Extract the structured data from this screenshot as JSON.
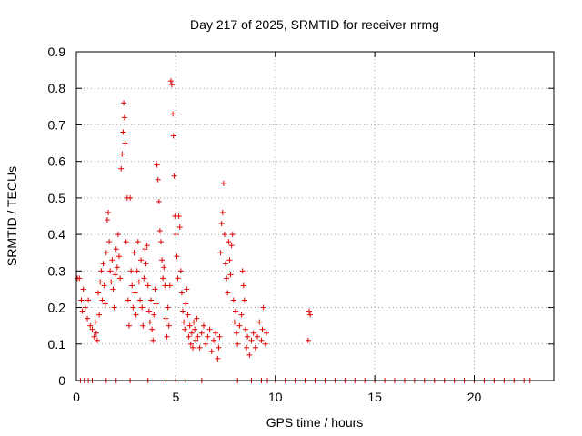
{
  "chart_data": {
    "type": "scatter",
    "title": "Day 217 of 2025, SRMTID for receiver nrmg",
    "xlabel": "GPS time / hours",
    "ylabel": "SRMTID / TECUs",
    "xlim": [
      0,
      24
    ],
    "ylim": [
      0,
      0.9
    ],
    "xticks": [
      "0",
      "5",
      "10",
      "15",
      "20"
    ],
    "yticks": [
      "0",
      "0.1",
      "0.2",
      "0.3",
      "0.4",
      "0.5",
      "0.6",
      "0.7",
      "0.8",
      "0.9"
    ],
    "grid": true,
    "marker": "plus",
    "color": "#e00000",
    "series": [
      {
        "name": "SRMTID",
        "points": [
          [
            0.05,
            0.28
          ],
          [
            0.15,
            0.28
          ],
          [
            0.25,
            0.22
          ],
          [
            0.3,
            0.19
          ],
          [
            0.35,
            0.25
          ],
          [
            0.45,
            0.2
          ],
          [
            0.55,
            0.17
          ],
          [
            0.6,
            0.22
          ],
          [
            0.7,
            0.15
          ],
          [
            0.8,
            0.14
          ],
          [
            0.9,
            0.12
          ],
          [
            0.95,
            0.16
          ],
          [
            1.0,
            0.13
          ],
          [
            1.05,
            0.11
          ],
          [
            1.1,
            0.24
          ],
          [
            1.15,
            0.18
          ],
          [
            1.2,
            0.27
          ],
          [
            1.25,
            0.3
          ],
          [
            1.3,
            0.22
          ],
          [
            1.35,
            0.32
          ],
          [
            1.4,
            0.26
          ],
          [
            1.45,
            0.21
          ],
          [
            1.5,
            0.35
          ],
          [
            1.55,
            0.44
          ],
          [
            1.6,
            0.46
          ],
          [
            1.65,
            0.38
          ],
          [
            1.7,
            0.3
          ],
          [
            1.75,
            0.27
          ],
          [
            1.8,
            0.33
          ],
          [
            1.85,
            0.25
          ],
          [
            1.9,
            0.2
          ],
          [
            1.95,
            0.29
          ],
          [
            2.0,
            0.36
          ],
          [
            2.05,
            0.31
          ],
          [
            2.1,
            0.4
          ],
          [
            2.15,
            0.34
          ],
          [
            2.2,
            0.28
          ],
          [
            2.25,
            0.58
          ],
          [
            2.3,
            0.62
          ],
          [
            2.35,
            0.68
          ],
          [
            2.38,
            0.76
          ],
          [
            2.42,
            0.72
          ],
          [
            2.45,
            0.65
          ],
          [
            2.5,
            0.38
          ],
          [
            2.55,
            0.5
          ],
          [
            2.6,
            0.22
          ],
          [
            2.65,
            0.15
          ],
          [
            2.7,
            0.5
          ],
          [
            2.75,
            0.3
          ],
          [
            2.8,
            0.26
          ],
          [
            2.85,
            0.2
          ],
          [
            2.9,
            0.35
          ],
          [
            2.95,
            0.24
          ],
          [
            3.0,
            0.18
          ],
          [
            3.05,
            0.3
          ],
          [
            3.1,
            0.38
          ],
          [
            3.15,
            0.27
          ],
          [
            3.2,
            0.22
          ],
          [
            3.25,
            0.33
          ],
          [
            3.3,
            0.2
          ],
          [
            3.35,
            0.15
          ],
          [
            3.4,
            0.28
          ],
          [
            3.45,
            0.36
          ],
          [
            3.5,
            0.32
          ],
          [
            3.55,
            0.37
          ],
          [
            3.6,
            0.26
          ],
          [
            3.65,
            0.19
          ],
          [
            3.7,
            0.16
          ],
          [
            3.75,
            0.22
          ],
          [
            3.8,
            0.14
          ],
          [
            3.85,
            0.11
          ],
          [
            3.9,
            0.18
          ],
          [
            3.95,
            0.25
          ],
          [
            4.0,
            0.21
          ],
          [
            4.05,
            0.59
          ],
          [
            4.1,
            0.55
          ],
          [
            4.15,
            0.49
          ],
          [
            4.2,
            0.41
          ],
          [
            4.25,
            0.38
          ],
          [
            4.3,
            0.33
          ],
          [
            4.35,
            0.28
          ],
          [
            4.4,
            0.31
          ],
          [
            4.45,
            0.26
          ],
          [
            4.5,
            0.17
          ],
          [
            4.55,
            0.12
          ],
          [
            4.6,
            0.2
          ],
          [
            4.65,
            0.15
          ],
          [
            4.7,
            0.26
          ],
          [
            4.75,
            0.82
          ],
          [
            4.8,
            0.81
          ],
          [
            4.85,
            0.73
          ],
          [
            4.88,
            0.67
          ],
          [
            4.92,
            0.56
          ],
          [
            4.95,
            0.45
          ],
          [
            5.0,
            0.4
          ],
          [
            5.05,
            0.34
          ],
          [
            5.1,
            0.28
          ],
          [
            5.15,
            0.45
          ],
          [
            5.2,
            0.42
          ],
          [
            5.25,
            0.3
          ],
          [
            5.3,
            0.24
          ],
          [
            5.35,
            0.19
          ],
          [
            5.4,
            0.16
          ],
          [
            5.45,
            0.14
          ],
          [
            5.5,
            0.21
          ],
          [
            5.55,
            0.25
          ],
          [
            5.6,
            0.18
          ],
          [
            5.65,
            0.12
          ],
          [
            5.7,
            0.15
          ],
          [
            5.75,
            0.1
          ],
          [
            5.8,
            0.13
          ],
          [
            5.85,
            0.09
          ],
          [
            5.9,
            0.16
          ],
          [
            5.95,
            0.14
          ],
          [
            6.0,
            0.11
          ],
          [
            6.05,
            0.17
          ],
          [
            6.1,
            0.12
          ],
          [
            6.2,
            0.09
          ],
          [
            6.3,
            0.13
          ],
          [
            6.4,
            0.15
          ],
          [
            6.5,
            0.1
          ],
          [
            6.6,
            0.12
          ],
          [
            6.7,
            0.14
          ],
          [
            6.8,
            0.08
          ],
          [
            6.9,
            0.11
          ],
          [
            7.0,
            0.13
          ],
          [
            7.1,
            0.06
          ],
          [
            7.15,
            0.09
          ],
          [
            7.2,
            0.12
          ],
          [
            7.25,
            0.35
          ],
          [
            7.3,
            0.43
          ],
          [
            7.35,
            0.46
          ],
          [
            7.4,
            0.54
          ],
          [
            7.45,
            0.4
          ],
          [
            7.5,
            0.32
          ],
          [
            7.55,
            0.28
          ],
          [
            7.6,
            0.24
          ],
          [
            7.65,
            0.38
          ],
          [
            7.7,
            0.33
          ],
          [
            7.75,
            0.29
          ],
          [
            7.8,
            0.37
          ],
          [
            7.85,
            0.4
          ],
          [
            7.9,
            0.22
          ],
          [
            7.95,
            0.16
          ],
          [
            8.0,
            0.19
          ],
          [
            8.05,
            0.13
          ],
          [
            8.1,
            0.1
          ],
          [
            8.2,
            0.15
          ],
          [
            8.3,
            0.18
          ],
          [
            8.35,
            0.3
          ],
          [
            8.4,
            0.26
          ],
          [
            8.45,
            0.22
          ],
          [
            8.5,
            0.14
          ],
          [
            8.55,
            0.09
          ],
          [
            8.6,
            0.12
          ],
          [
            8.7,
            0.07
          ],
          [
            8.8,
            0.11
          ],
          [
            8.9,
            0.13
          ],
          [
            9.0,
            0.09
          ],
          [
            9.1,
            0.12
          ],
          [
            9.2,
            0.16
          ],
          [
            9.3,
            0.11
          ],
          [
            9.35,
            0.14
          ],
          [
            9.4,
            0.2
          ],
          [
            9.5,
            0.1
          ],
          [
            9.55,
            0.13
          ],
          [
            11.65,
            0.11
          ],
          [
            11.7,
            0.19
          ],
          [
            11.75,
            0.18
          ],
          [
            0.2,
            0.0
          ],
          [
            0.4,
            0.0
          ],
          [
            0.6,
            0.0
          ],
          [
            0.8,
            0.0
          ],
          [
            1.5,
            0.0
          ],
          [
            2.0,
            0.0
          ],
          [
            2.7,
            0.0
          ],
          [
            3.6,
            0.0
          ],
          [
            4.5,
            0.0
          ],
          [
            5.0,
            0.0
          ],
          [
            5.5,
            0.0
          ],
          [
            6.3,
            0.0
          ],
          [
            8.1,
            0.0
          ],
          [
            8.8,
            0.0
          ],
          [
            9.3,
            0.0
          ],
          [
            9.6,
            0.0
          ],
          [
            10.0,
            0.0
          ],
          [
            10.5,
            0.0
          ],
          [
            11.0,
            0.0
          ],
          [
            11.5,
            0.0
          ],
          [
            12.0,
            0.0
          ],
          [
            12.5,
            0.0
          ],
          [
            13.0,
            0.0
          ],
          [
            13.5,
            0.0
          ],
          [
            14.0,
            0.0
          ],
          [
            14.5,
            0.0
          ],
          [
            15.0,
            0.0
          ],
          [
            15.5,
            0.0
          ],
          [
            16.0,
            0.0
          ],
          [
            16.5,
            0.0
          ],
          [
            17.0,
            0.0
          ],
          [
            17.5,
            0.0
          ],
          [
            18.0,
            0.0
          ],
          [
            18.5,
            0.0
          ],
          [
            19.0,
            0.0
          ],
          [
            19.5,
            0.0
          ],
          [
            20.0,
            0.0
          ],
          [
            20.5,
            0.0
          ],
          [
            21.0,
            0.0
          ],
          [
            21.5,
            0.0
          ],
          [
            22.0,
            0.0
          ],
          [
            22.5,
            0.0
          ],
          [
            22.8,
            0.0
          ]
        ]
      }
    ]
  }
}
